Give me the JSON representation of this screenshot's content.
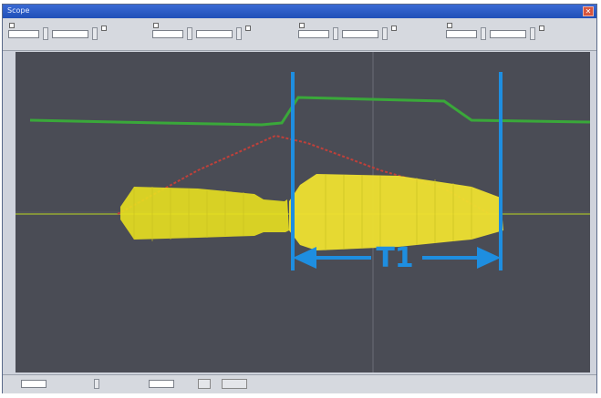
{
  "window": {
    "title": "Scope"
  },
  "toolbar": {
    "channels": [
      {
        "title": "",
        "value": "",
        "unit": ""
      },
      {
        "title": "",
        "value": "",
        "unit": ""
      },
      {
        "title": "",
        "value": "",
        "unit": ""
      },
      {
        "title": "",
        "value": "",
        "unit": ""
      }
    ]
  },
  "scope": {
    "marker_label": "T1",
    "colors": {
      "background": "#4a4c55",
      "signal": "#e8e020",
      "envelope": "#3aa83a",
      "ramp": "#c0403a",
      "baseline": "#8a9a3a",
      "cursor": "#1e8ee0",
      "grid": "#6a6d76"
    }
  },
  "statusbar": {
    "field1_label": "",
    "field1_value": "",
    "field2_label": "",
    "field2_value": "",
    "button1_label": "",
    "button2_label": ""
  }
}
